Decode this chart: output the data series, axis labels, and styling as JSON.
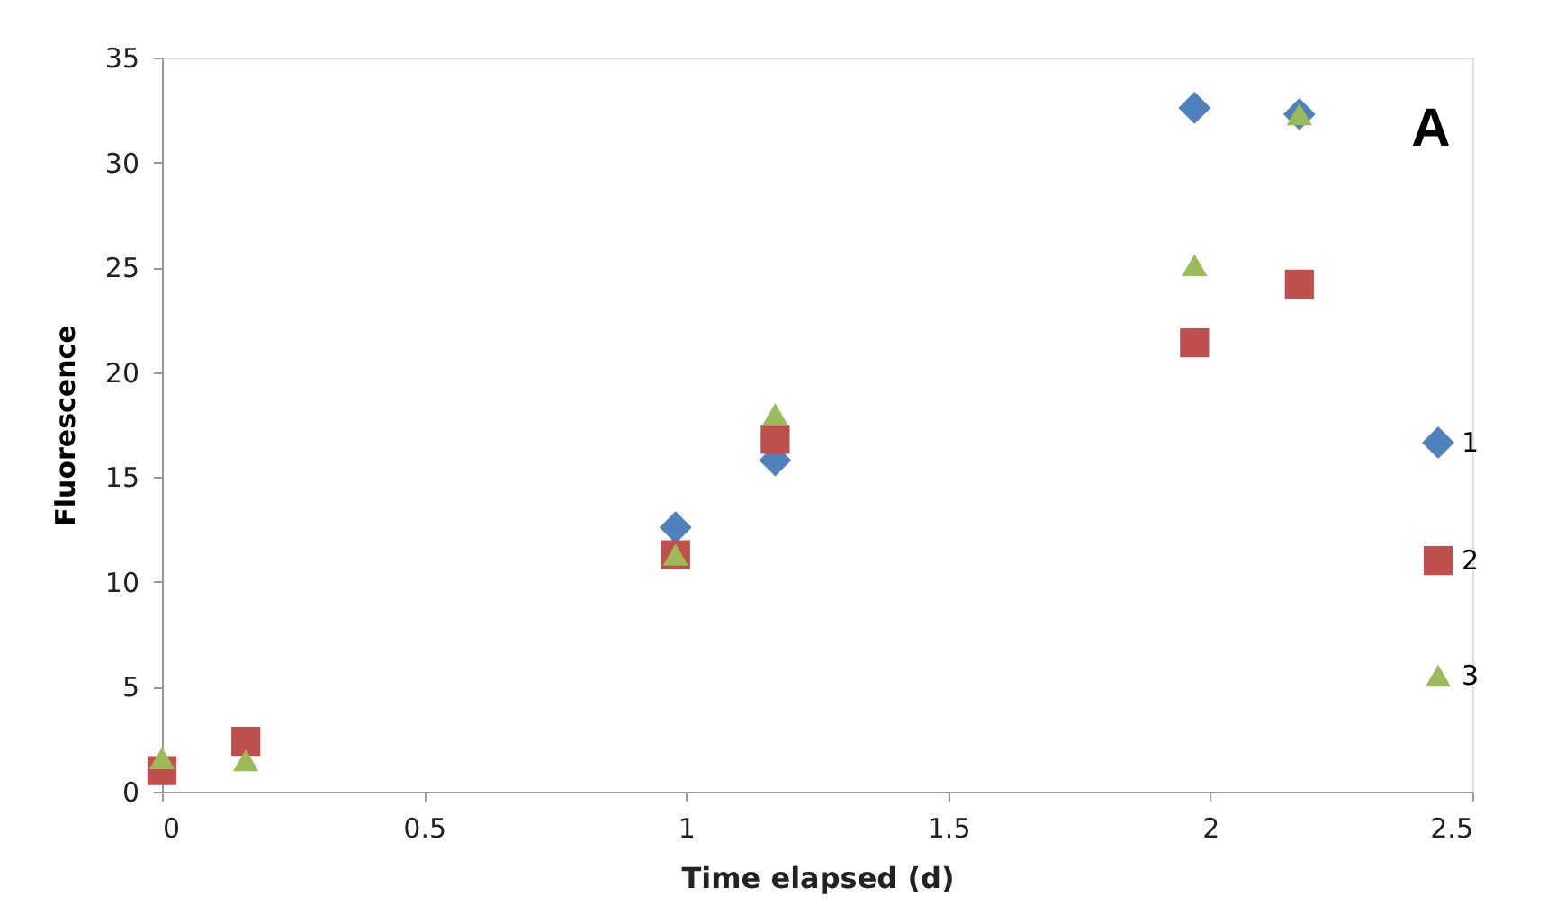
{
  "chart_data": {
    "type": "scatter",
    "xlabel": "Time elapsed (d)",
    "ylabel": "Fluorescence",
    "annotations": [
      "A"
    ],
    "xlim": [
      0,
      2.5
    ],
    "xticks": [
      0,
      0.5,
      1,
      1.5,
      2,
      2.5
    ],
    "ylim": [
      0,
      35
    ],
    "yticks": [
      0,
      5,
      10,
      15,
      20,
      25,
      30,
      35
    ],
    "grid": false,
    "legend": "right",
    "series": [
      {
        "name": "1",
        "color": "#4f81bd",
        "marker": "diamond",
        "x": [
          0.98,
          1.17,
          1.97,
          2.17
        ],
        "values": [
          12.6,
          15.8,
          32.6,
          32.3
        ]
      },
      {
        "name": "2",
        "color": "#c0504d",
        "marker": "square",
        "x": [
          0,
          0.16,
          0.98,
          1.17,
          1.97,
          2.17
        ],
        "values": [
          1.0,
          2.4,
          11.3,
          16.8,
          21.4,
          24.2
        ]
      },
      {
        "name": "3",
        "color": "#9bbb59",
        "marker": "triangle",
        "x": [
          0,
          0.16,
          0.98,
          1.17,
          1.97,
          2.17
        ],
        "values": [
          1.6,
          1.5,
          11.3,
          18.0,
          25.1,
          32.3
        ]
      }
    ]
  }
}
